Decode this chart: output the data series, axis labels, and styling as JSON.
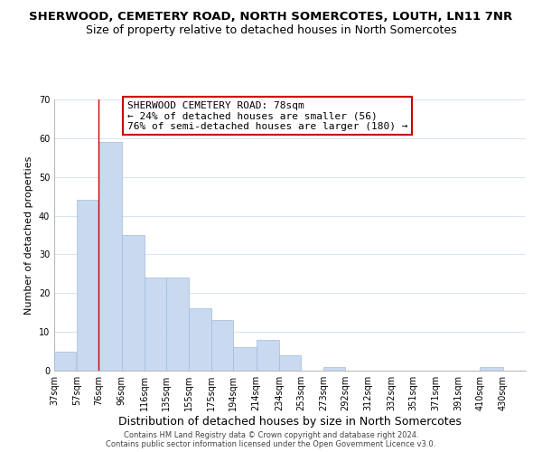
{
  "title": "SHERWOOD, CEMETERY ROAD, NORTH SOMERCOTES, LOUTH, LN11 7NR",
  "subtitle": "Size of property relative to detached houses in North Somercotes",
  "xlabel": "Distribution of detached houses by size in North Somercotes",
  "ylabel": "Number of detached properties",
  "bar_left_edges": [
    37,
    57,
    76,
    96,
    116,
    135,
    155,
    175,
    194,
    214,
    234,
    253,
    273,
    292,
    312,
    332,
    351,
    371,
    391,
    410
  ],
  "bar_heights": [
    5,
    44,
    59,
    35,
    24,
    24,
    16,
    13,
    6,
    8,
    4,
    0,
    1,
    0,
    0,
    0,
    0,
    0,
    0,
    1
  ],
  "bar_widths": [
    19,
    19,
    20,
    20,
    19,
    20,
    20,
    19,
    20,
    20,
    19,
    20,
    19,
    20,
    20,
    19,
    20,
    20,
    19,
    20
  ],
  "bar_color": "#c8d9f0",
  "bar_edgecolor": "#a0bcd8",
  "vline_x": 76,
  "vline_color": "#cc0000",
  "ylim": [
    0,
    70
  ],
  "yticks": [
    0,
    10,
    20,
    30,
    40,
    50,
    60,
    70
  ],
  "xtick_labels": [
    "37sqm",
    "57sqm",
    "76sqm",
    "96sqm",
    "116sqm",
    "135sqm",
    "155sqm",
    "175sqm",
    "194sqm",
    "214sqm",
    "234sqm",
    "253sqm",
    "273sqm",
    "292sqm",
    "312sqm",
    "332sqm",
    "351sqm",
    "371sqm",
    "391sqm",
    "410sqm",
    "430sqm"
  ],
  "annotation_title": "SHERWOOD CEMETERY ROAD: 78sqm",
  "annotation_line1": "← 24% of detached houses are smaller (56)",
  "annotation_line2": "76% of semi-detached houses are larger (180) →",
  "annotation_box_color": "#ffffff",
  "annotation_box_edgecolor": "#cc0000",
  "footer1": "Contains HM Land Registry data © Crown copyright and database right 2024.",
  "footer2": "Contains public sector information licensed under the Open Government Licence v3.0.",
  "bg_color": "#ffffff",
  "grid_color": "#d8e4f0",
  "title_fontsize": 9.5,
  "subtitle_fontsize": 9,
  "xlabel_fontsize": 9,
  "ylabel_fontsize": 8,
  "tick_fontsize": 7,
  "annotation_fontsize": 8,
  "footer_fontsize": 6
}
